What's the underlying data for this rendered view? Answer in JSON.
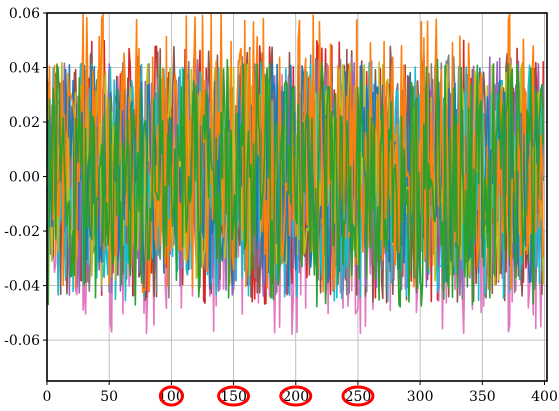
{
  "chart_data": {
    "type": "line",
    "xlim": [
      0,
      402
    ],
    "ylim": [
      -0.075,
      0.06
    ],
    "grid": true,
    "x_ticks": [
      0,
      50,
      100,
      150,
      200,
      250,
      300,
      350,
      400
    ],
    "x_tick_labels": [
      "0",
      "50",
      "100",
      "150",
      "200",
      "250",
      "300",
      "350",
      "400"
    ],
    "y_ticks": [
      0.06,
      0.04,
      0.02,
      0.0,
      -0.02,
      -0.04,
      -0.06
    ],
    "y_tick_labels": [
      "0.06",
      "0.04",
      "0.02",
      "0.00",
      "-0.02",
      "-0.04",
      "-0.06"
    ],
    "series_colors": [
      "#1f77b4",
      "#ff7f0e",
      "#2ca02c",
      "#d62728",
      "#9467bd",
      "#8c564b",
      "#e377c2",
      "#7f7f7f",
      "#bcbd22",
      "#17becf"
    ],
    "series_ranges": [
      {
        "color": "#e377c2",
        "min": -0.058,
        "max": 0.038
      },
      {
        "color": "#d62728",
        "min": -0.047,
        "max": 0.05
      },
      {
        "color": "#8c564b",
        "min": -0.046,
        "max": 0.048
      },
      {
        "color": "#7f7f7f",
        "min": -0.045,
        "max": 0.045
      },
      {
        "color": "#9467bd",
        "min": -0.044,
        "max": 0.044
      },
      {
        "color": "#17becf",
        "min": -0.046,
        "max": 0.042
      },
      {
        "color": "#bcbd22",
        "min": -0.04,
        "max": 0.042
      },
      {
        "color": "#1f77b4",
        "min": -0.042,
        "max": 0.042
      },
      {
        "color": "#ff7f0e",
        "min": -0.043,
        "max": 0.06
      },
      {
        "color": "#2ca02c",
        "min": -0.048,
        "max": 0.043
      }
    ],
    "x_count": 400,
    "highlighted_x_ticks": [
      100,
      150,
      200,
      250
    ],
    "highlight_color": "#ff0000"
  }
}
